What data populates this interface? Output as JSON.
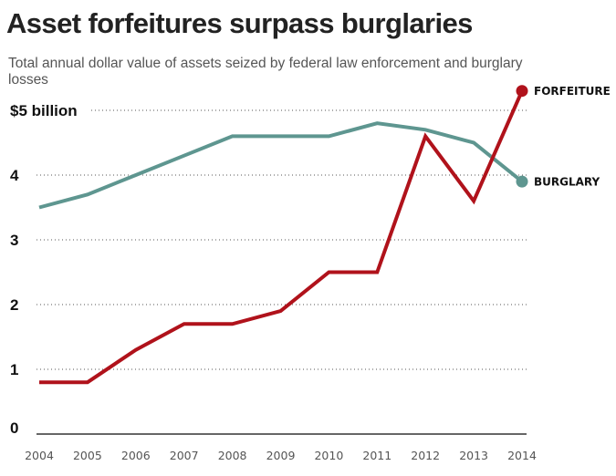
{
  "header": {
    "title": "Asset forfeitures surpass burglaries",
    "subtitle": "Total annual dollar value of assets seized by federal law enforcement and burglary losses"
  },
  "chart_data": {
    "type": "line",
    "title": "Asset forfeitures surpass burglaries",
    "subtitle": "Total annual dollar value of assets seized by federal law enforcement and burglary losses",
    "x": [
      2004,
      2005,
      2006,
      2007,
      2008,
      2009,
      2010,
      2011,
      2012,
      2013,
      2014
    ],
    "yticks": [
      0,
      1,
      2,
      3,
      4,
      5
    ],
    "ytick_labels": [
      "0",
      "1",
      "2",
      "3",
      "4",
      "$5 billion"
    ],
    "ylim": [
      0,
      5
    ],
    "grid": true,
    "series": [
      {
        "name": "BURGLARY",
        "color": "#5e9690",
        "values": [
          3.5,
          3.7,
          4.0,
          4.3,
          4.6,
          4.6,
          4.6,
          4.8,
          4.7,
          4.5,
          3.9
        ]
      },
      {
        "name": "FORFEITURE",
        "color": "#b0121b",
        "values": [
          0.8,
          0.8,
          1.3,
          1.7,
          1.7,
          1.9,
          2.5,
          2.5,
          4.6,
          3.6,
          5.3
        ]
      }
    ]
  }
}
